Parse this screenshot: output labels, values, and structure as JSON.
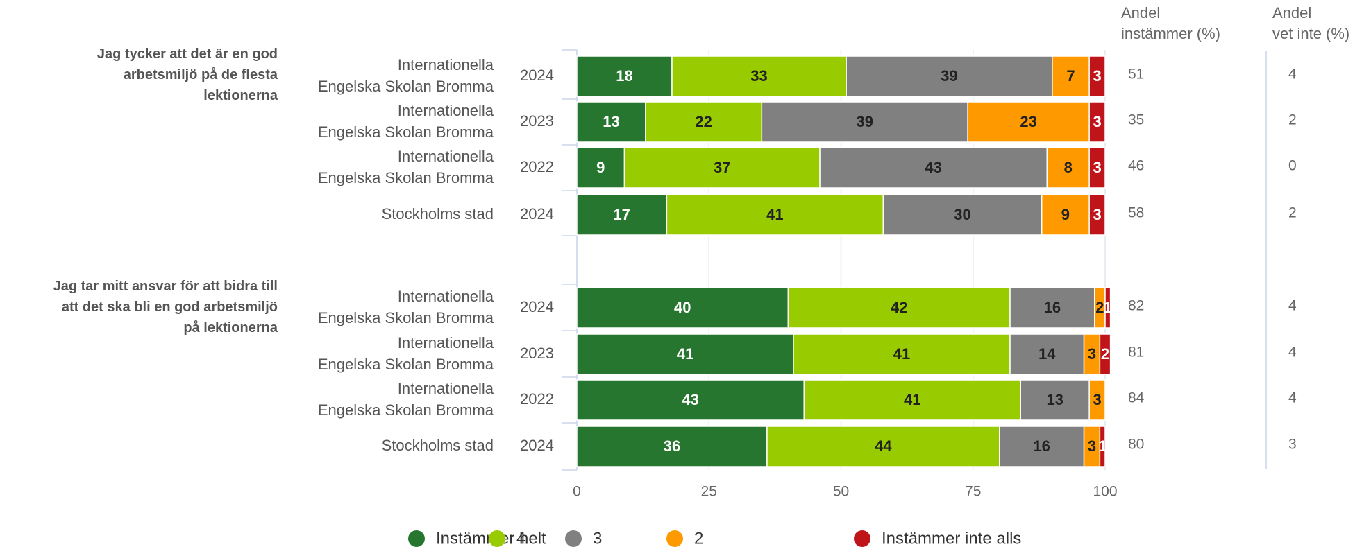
{
  "chart_data": {
    "type": "bar",
    "orientation": "horizontal",
    "stacked": true,
    "xlim": [
      0,
      100
    ],
    "x_ticks": [
      "0",
      "25",
      "50",
      "75",
      "100"
    ],
    "legend_position": "bottom",
    "column_headers": {
      "instammer": [
        "Andel",
        "instämmer (%)"
      ],
      "vet_inte": [
        "Andel",
        "vet inte (%)"
      ]
    },
    "series": [
      {
        "key": "s5",
        "name": "Instämmer helt",
        "color": "#26762f",
        "text_color": "#ffffff"
      },
      {
        "key": "s4",
        "name": "4",
        "color": "#99cc00",
        "text_color": "#222222"
      },
      {
        "key": "s3",
        "name": "3",
        "color": "#808080",
        "text_color": "#222222"
      },
      {
        "key": "s2",
        "name": "2",
        "color": "#ff9900",
        "text_color": "#222222"
      },
      {
        "key": "s1",
        "name": "Instämmer inte alls",
        "color": "#c0141b",
        "text_color": "#ffffff"
      }
    ],
    "groups": [
      {
        "question": [
          "Jag tycker att det är en god",
          "arbetsmiljö på de flesta",
          "lektionerna"
        ],
        "rows": [
          {
            "school": [
              "Internationella",
              "Engelska Skolan Bromma"
            ],
            "year": "2024",
            "values": [
              18,
              33,
              39,
              7,
              3
            ],
            "andel_instammer": "51",
            "andel_vet_inte": "4"
          },
          {
            "school": [
              "Internationella",
              "Engelska Skolan Bromma"
            ],
            "year": "2023",
            "values": [
              13,
              22,
              39,
              23,
              3
            ],
            "andel_instammer": "35",
            "andel_vet_inte": "2"
          },
          {
            "school": [
              "Internationella",
              "Engelska Skolan Bromma"
            ],
            "year": "2022",
            "values": [
              9,
              37,
              43,
              8,
              3
            ],
            "andel_instammer": "46",
            "andel_vet_inte": "0"
          },
          {
            "school": [
              "Stockholms stad"
            ],
            "year": "2024",
            "values": [
              17,
              41,
              30,
              9,
              3
            ],
            "andel_instammer": "58",
            "andel_vet_inte": "2"
          }
        ]
      },
      {
        "question": [
          "Jag tar mitt ansvar för att bidra till",
          "att det ska bli en god arbetsmiljö",
          "på lektionerna"
        ],
        "rows": [
          {
            "school": [
              "Internationella",
              "Engelska Skolan Bromma"
            ],
            "year": "2024",
            "values": [
              40,
              42,
              16,
              2,
              1
            ],
            "andel_instammer": "82",
            "andel_vet_inte": "4"
          },
          {
            "school": [
              "Internationella",
              "Engelska Skolan Bromma"
            ],
            "year": "2023",
            "values": [
              41,
              41,
              14,
              3,
              2
            ],
            "andel_instammer": "81",
            "andel_vet_inte": "4"
          },
          {
            "school": [
              "Internationella",
              "Engelska Skolan Bromma"
            ],
            "year": "2022",
            "values": [
              43,
              41,
              13,
              3,
              0
            ],
            "andel_instammer": "84",
            "andel_vet_inte": "4"
          },
          {
            "school": [
              "Stockholms stad"
            ],
            "year": "2024",
            "values": [
              36,
              44,
              16,
              3,
              1
            ],
            "andel_instammer": "80",
            "andel_vet_inte": "3"
          }
        ]
      }
    ]
  }
}
